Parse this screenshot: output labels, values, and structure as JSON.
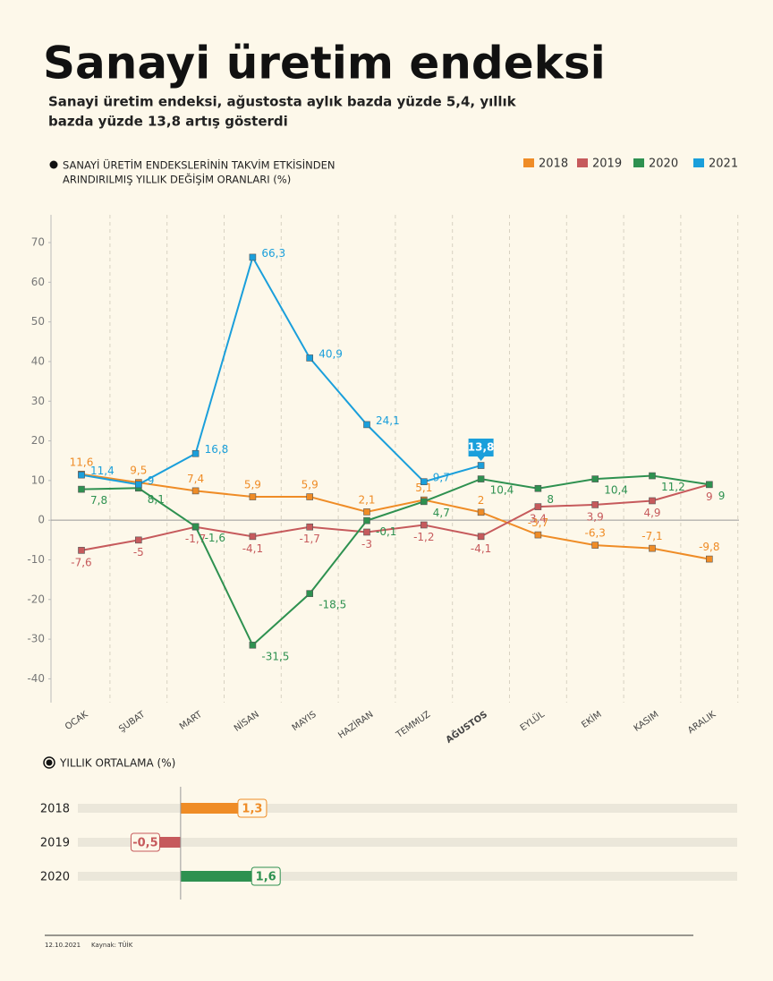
{
  "header": {
    "title": "Sanayi üretim endeksi",
    "subtitle_lines": [
      "Sanayi üretim endeksi, ağustosta aylık bazda yüzde 5,4, yıllık",
      "bazda yüzde 13,8 artış gösterdi"
    ]
  },
  "chart_data": [
    {
      "type": "line",
      "title_lines": [
        "SANAYİ ÜRETİM ENDEKSLERİNİN TAKVİM ETKİSİNDEN",
        "ARINDIRILMIŞ YILLIK DEĞİŞİM ORANLARI (%)"
      ],
      "categories": [
        "OCAK",
        "ŞUBAT",
        "MART",
        "NİSAN",
        "MAYIS",
        "HAZİRAN",
        "TEMMUZ",
        "AĞUSTOS",
        "EYLÜL",
        "EKİM",
        "KASIM",
        "ARALIK"
      ],
      "series": [
        {
          "name": "2018",
          "color": "#ef8c26",
          "values": [
            11.6,
            9.5,
            7.4,
            5.9,
            5.9,
            2.1,
            5.1,
            2,
            -3.7,
            -6.3,
            -7.1,
            -9.8
          ],
          "value_labels": [
            "11,6",
            "9,5",
            "7,4",
            "5,9",
            "5,9",
            "2,1",
            "5,1",
            "2",
            "-3,7",
            "-6,3",
            "-7,1",
            "-9,8"
          ]
        },
        {
          "name": "2019",
          "color": "#c65a5c",
          "values": [
            -7.6,
            -5,
            -1.7,
            -4.1,
            -1.7,
            -3,
            -1.2,
            -4.1,
            3.4,
            3.9,
            4.9,
            9
          ],
          "value_labels": [
            "-7,6",
            "-5",
            "-1,7",
            "-4,1",
            "-1,7",
            "-3",
            "-1,2",
            "-4,1",
            "3,4",
            "3,9",
            "4,9",
            "9"
          ]
        },
        {
          "name": "2020",
          "color": "#2e9150",
          "values": [
            7.8,
            8.1,
            -1.6,
            -31.5,
            -18.5,
            -0.1,
            4.7,
            10.4,
            8,
            10.4,
            11.2,
            9
          ],
          "value_labels": [
            "7,8",
            "8,1",
            "-1,6",
            "-31,5",
            "-18,5",
            "-0,1",
            "4,7",
            "10,4",
            "8",
            "10,4",
            "11,2",
            "9"
          ]
        },
        {
          "name": "2021",
          "color": "#1a9fdb",
          "values": [
            11.4,
            9,
            16.8,
            66.3,
            40.9,
            24.1,
            9.7,
            13.8,
            null,
            null,
            null,
            null
          ],
          "value_labels": [
            "11,4",
            "9",
            "16,8",
            "66,3",
            "40,9",
            "24,1",
            "9,7",
            "13,8",
            null,
            null,
            null,
            null
          ]
        }
      ],
      "ylim": [
        -46,
        77
      ],
      "yticks": [
        -40,
        -30,
        -20,
        -10,
        0,
        10,
        20,
        30,
        40,
        50,
        60,
        70
      ],
      "legend": "top-right"
    },
    {
      "type": "hbar",
      "title": "YILLIK ORTALAMA (%)",
      "categories": [
        "2018",
        "2019",
        "2020"
      ],
      "values": [
        1.3,
        -0.5,
        1.6
      ],
      "value_labels": [
        "1,3",
        "-0,5",
        "1,6"
      ],
      "colors": [
        "#ef8c26",
        "#c65a5c",
        "#2e9150"
      ],
      "xlim": [
        -2.26,
        12.24
      ]
    }
  ],
  "footer": {
    "date": "12.10.2021",
    "source": "Kaynak: TÜİK"
  }
}
